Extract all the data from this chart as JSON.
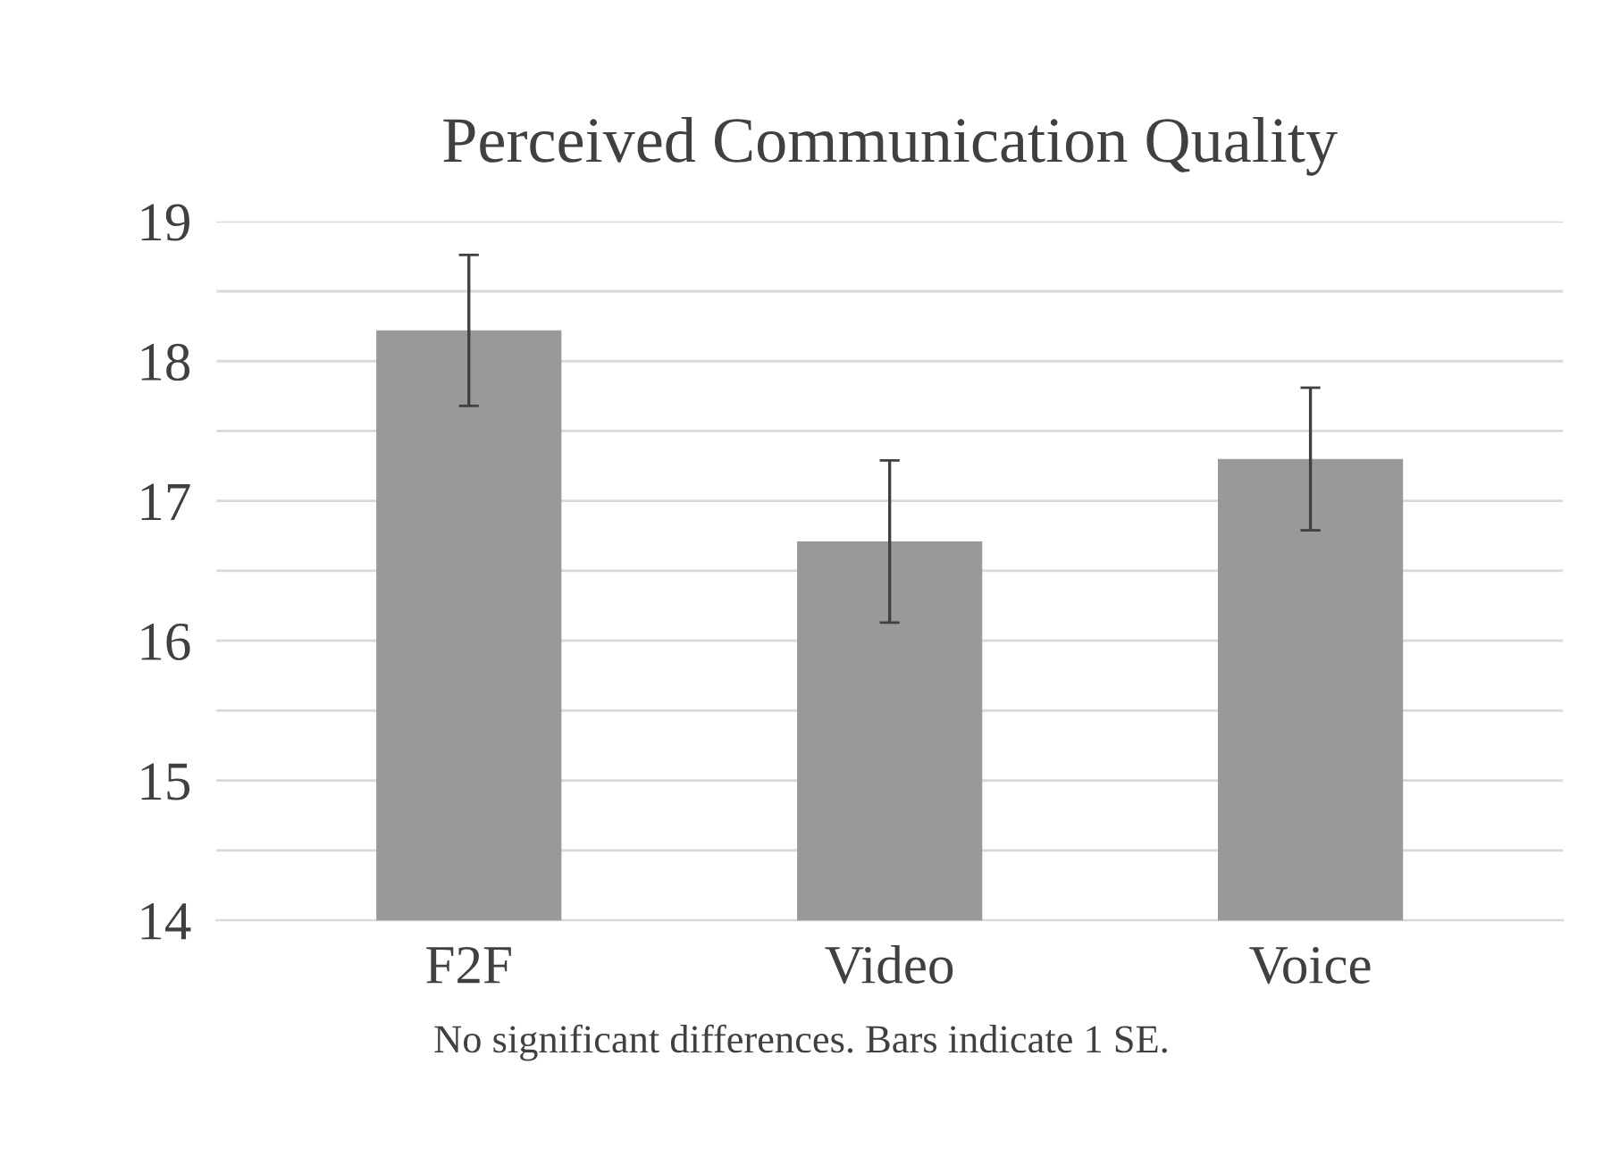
{
  "chart_data": {
    "type": "bar",
    "title": "Perceived Communication Quality",
    "categories": [
      "F2F",
      "Video",
      "Voice"
    ],
    "values": [
      18.22,
      16.71,
      17.3
    ],
    "errors": [
      0.54,
      0.58,
      0.51
    ],
    "color": "#999999",
    "ylim": [
      14,
      19
    ],
    "yticks": [
      14,
      {
        "value": 14.5,
        "label": null
      },
      15,
      {
        "value": 15.5,
        "label": null
      },
      16,
      {
        "value": 16.5,
        "label": null
      },
      17,
      {
        "value": 17.5,
        "label": null
      },
      18,
      {
        "value": 18.5,
        "label": null
      },
      19
    ],
    "grid": "y",
    "annotations": [
      "No significant differences. Bars indicate 1 SE."
    ]
  }
}
